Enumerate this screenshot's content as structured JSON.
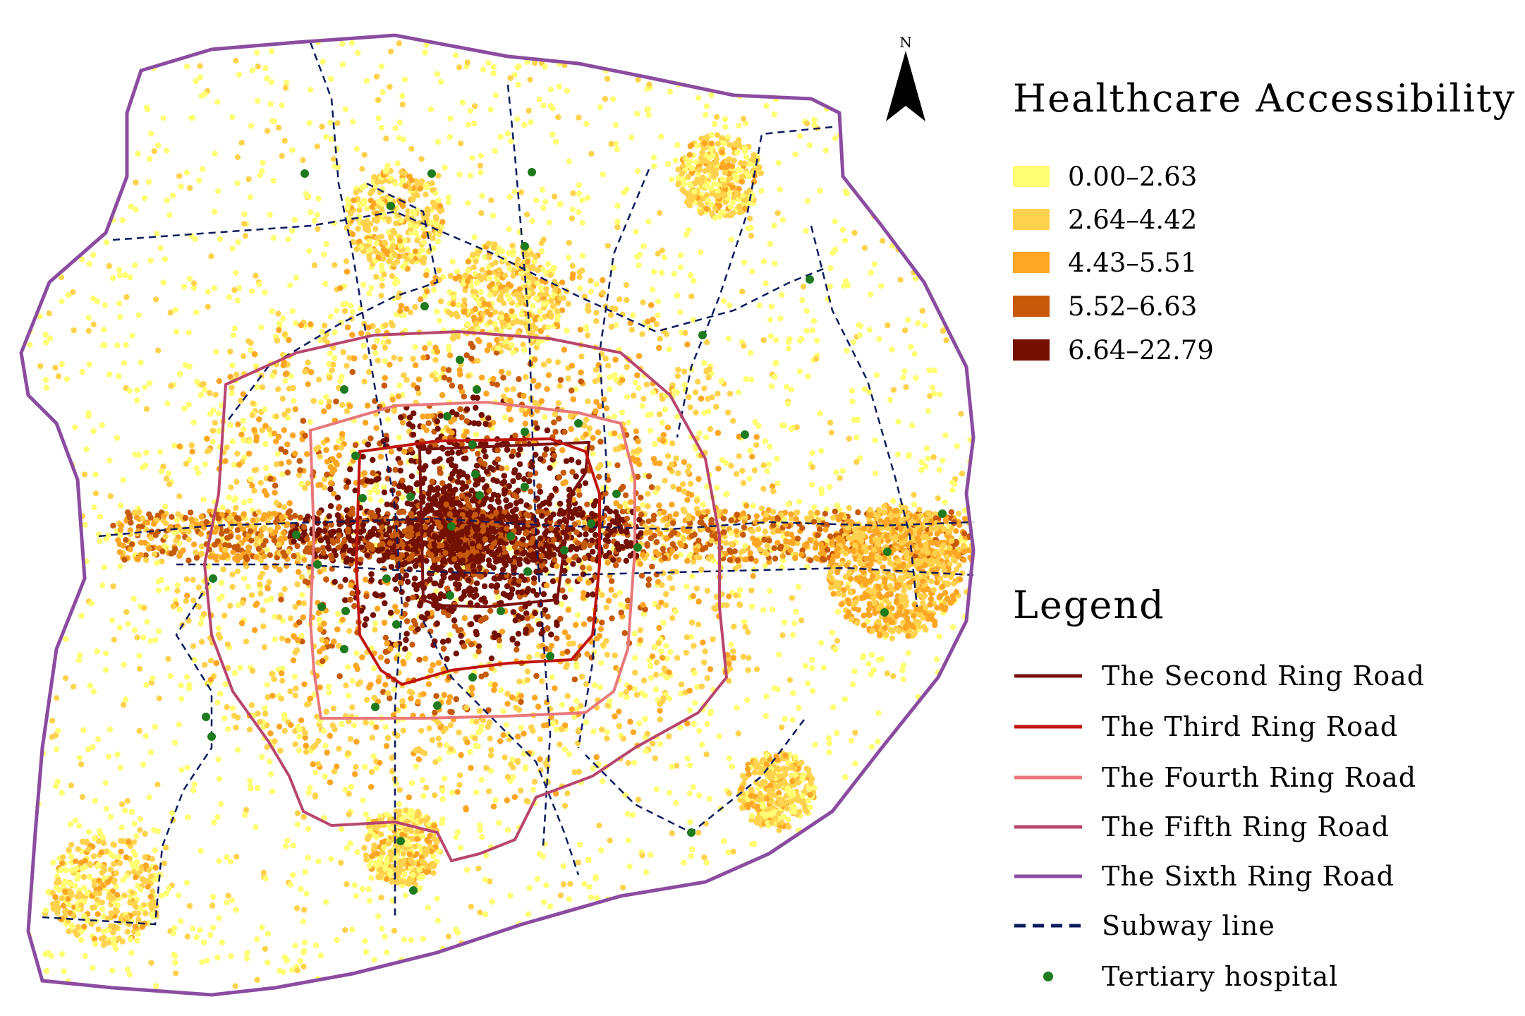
{
  "north_arrow": {
    "label": "N",
    "icon": "north-arrow-icon"
  },
  "accessibility_legend": {
    "title": "Healthcare Accessibility",
    "classes": [
      {
        "label": "0.00–2.63",
        "color": "#ffff73"
      },
      {
        "label": "2.64–4.42",
        "color": "#ffd24d"
      },
      {
        "label": "4.43–5.51",
        "color": "#fca624"
      },
      {
        "label": "5.52–6.63",
        "color": "#c65a0a"
      },
      {
        "label": "6.64–22.79",
        "color": "#731002"
      }
    ]
  },
  "legend": {
    "title": "Legend",
    "items": [
      {
        "label": "The Second Ring Road",
        "color": "#7a1010",
        "style": "solid"
      },
      {
        "label": "The Third Ring Road",
        "color": "#c0140f",
        "style": "solid"
      },
      {
        "label": "The Fourth Ring Road",
        "color": "#e8787a",
        "style": "solid"
      },
      {
        "label": "The Fifth Ring Road",
        "color": "#b8456e",
        "style": "solid"
      },
      {
        "label": "The Sixth Ring Road",
        "color": "#8a4ca0",
        "style": "solid"
      },
      {
        "label": "Subway line",
        "color": "#0d1a5c",
        "style": "dashed"
      },
      {
        "label": "Tertiary hospital",
        "color": "#1e7a1e",
        "style": "dot"
      }
    ]
  }
}
